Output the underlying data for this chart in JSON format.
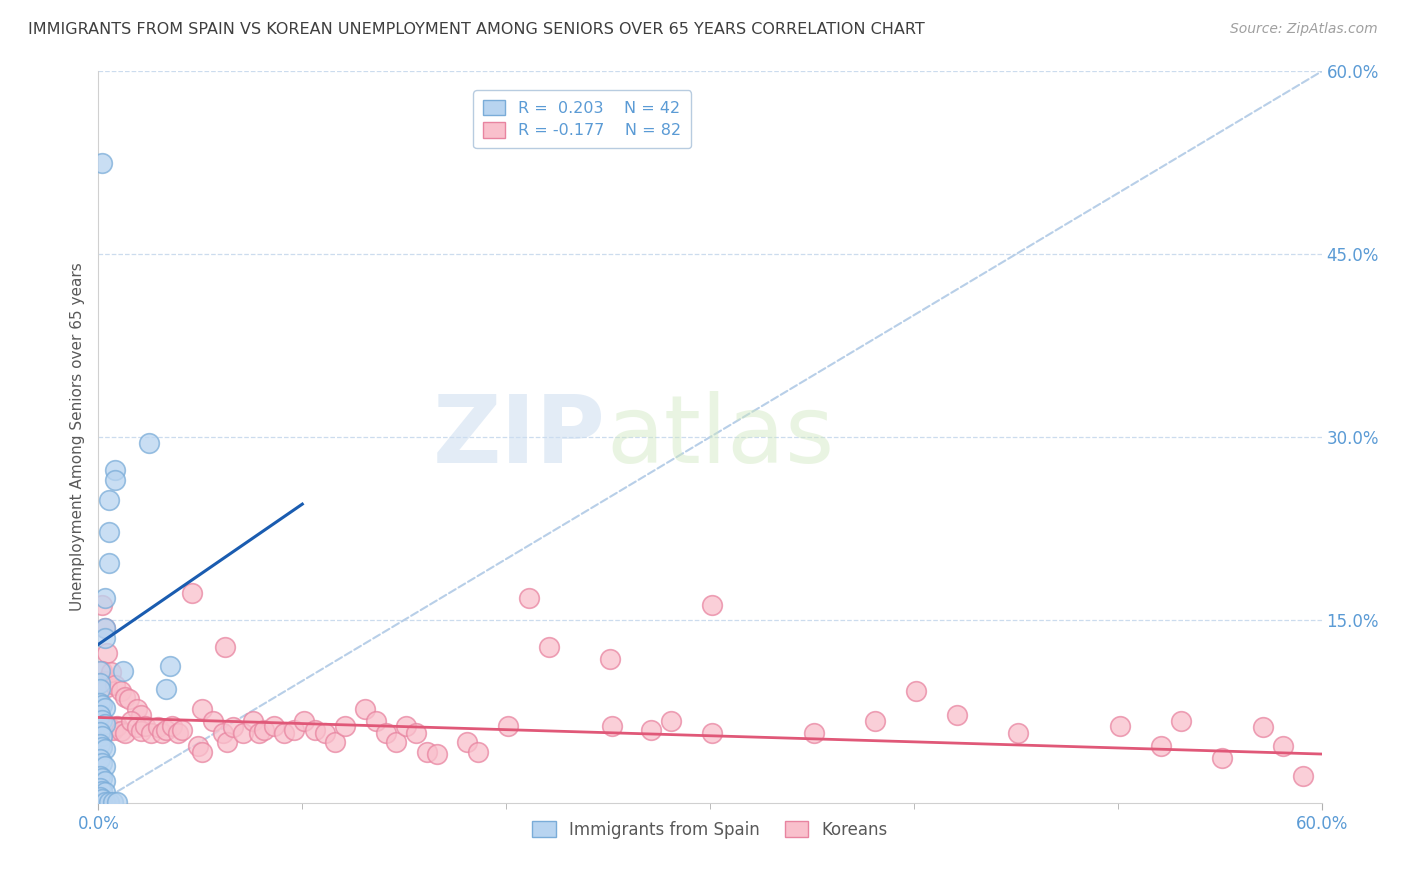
{
  "title": "IMMIGRANTS FROM SPAIN VS KOREAN UNEMPLOYMENT AMONG SENIORS OVER 65 YEARS CORRELATION CHART",
  "source": "Source: ZipAtlas.com",
  "ylabel": "Unemployment Among Seniors over 65 years",
  "right_axis_labels": [
    "60.0%",
    "45.0%",
    "30.0%",
    "15.0%"
  ],
  "xlim": [
    0,
    0.6
  ],
  "ylim": [
    0,
    0.6
  ],
  "legend_label1": "Immigrants from Spain",
  "legend_label2": "Koreans",
  "diagonal_line_color": "#b8cfe8",
  "blue_trend_x": [
    0.0,
    0.1
  ],
  "blue_trend_y": [
    0.13,
    0.245
  ],
  "blue_trend_color": "#1a5cb0",
  "pink_trend_x": [
    0.0,
    0.6
  ],
  "pink_trend_y": [
    0.07,
    0.04
  ],
  "pink_trend_color": "#e05878",
  "blue_points": [
    [
      0.002,
      0.525
    ],
    [
      0.008,
      0.273
    ],
    [
      0.008,
      0.265
    ],
    [
      0.005,
      0.248
    ],
    [
      0.005,
      0.222
    ],
    [
      0.005,
      0.197
    ],
    [
      0.003,
      0.168
    ],
    [
      0.003,
      0.143
    ],
    [
      0.003,
      0.135
    ],
    [
      0.001,
      0.108
    ],
    [
      0.001,
      0.098
    ],
    [
      0.001,
      0.093
    ],
    [
      0.025,
      0.295
    ],
    [
      0.035,
      0.112
    ],
    [
      0.033,
      0.093
    ],
    [
      0.012,
      0.108
    ],
    [
      0.001,
      0.082
    ],
    [
      0.002,
      0.08
    ],
    [
      0.003,
      0.078
    ],
    [
      0.001,
      0.072
    ],
    [
      0.002,
      0.068
    ],
    [
      0.003,
      0.065
    ],
    [
      0.001,
      0.058
    ],
    [
      0.002,
      0.055
    ],
    [
      0.001,
      0.048
    ],
    [
      0.002,
      0.046
    ],
    [
      0.003,
      0.044
    ],
    [
      0.001,
      0.036
    ],
    [
      0.002,
      0.033
    ],
    [
      0.003,
      0.03
    ],
    [
      0.001,
      0.022
    ],
    [
      0.002,
      0.02
    ],
    [
      0.003,
      0.018
    ],
    [
      0.001,
      0.012
    ],
    [
      0.002,
      0.01
    ],
    [
      0.003,
      0.009
    ],
    [
      0.001,
      0.005
    ],
    [
      0.002,
      0.003
    ],
    [
      0.003,
      0.001
    ],
    [
      0.005,
      0.001
    ],
    [
      0.007,
      0.001
    ],
    [
      0.009,
      0.001
    ]
  ],
  "pink_points": [
    [
      0.002,
      0.162
    ],
    [
      0.003,
      0.143
    ],
    [
      0.004,
      0.123
    ],
    [
      0.002,
      0.108
    ],
    [
      0.003,
      0.1
    ],
    [
      0.004,
      0.095
    ],
    [
      0.006,
      0.107
    ],
    [
      0.008,
      0.097
    ],
    [
      0.011,
      0.092
    ],
    [
      0.013,
      0.087
    ],
    [
      0.015,
      0.085
    ],
    [
      0.019,
      0.077
    ],
    [
      0.021,
      0.072
    ],
    [
      0.001,
      0.07
    ],
    [
      0.002,
      0.067
    ],
    [
      0.003,
      0.063
    ],
    [
      0.005,
      0.062
    ],
    [
      0.007,
      0.06
    ],
    [
      0.009,
      0.063
    ],
    [
      0.011,
      0.059
    ],
    [
      0.013,
      0.057
    ],
    [
      0.016,
      0.067
    ],
    [
      0.019,
      0.062
    ],
    [
      0.021,
      0.059
    ],
    [
      0.023,
      0.063
    ],
    [
      0.026,
      0.057
    ],
    [
      0.029,
      0.062
    ],
    [
      0.031,
      0.057
    ],
    [
      0.033,
      0.06
    ],
    [
      0.036,
      0.063
    ],
    [
      0.039,
      0.057
    ],
    [
      0.041,
      0.06
    ],
    [
      0.046,
      0.172
    ],
    [
      0.062,
      0.128
    ],
    [
      0.051,
      0.077
    ],
    [
      0.056,
      0.067
    ],
    [
      0.049,
      0.047
    ],
    [
      0.051,
      0.042
    ],
    [
      0.061,
      0.057
    ],
    [
      0.063,
      0.05
    ],
    [
      0.066,
      0.062
    ],
    [
      0.071,
      0.057
    ],
    [
      0.076,
      0.067
    ],
    [
      0.079,
      0.057
    ],
    [
      0.081,
      0.06
    ],
    [
      0.086,
      0.063
    ],
    [
      0.091,
      0.057
    ],
    [
      0.096,
      0.06
    ],
    [
      0.101,
      0.067
    ],
    [
      0.106,
      0.06
    ],
    [
      0.111,
      0.057
    ],
    [
      0.116,
      0.05
    ],
    [
      0.121,
      0.063
    ],
    [
      0.131,
      0.077
    ],
    [
      0.136,
      0.067
    ],
    [
      0.141,
      0.057
    ],
    [
      0.146,
      0.05
    ],
    [
      0.151,
      0.063
    ],
    [
      0.156,
      0.057
    ],
    [
      0.161,
      0.042
    ],
    [
      0.166,
      0.04
    ],
    [
      0.181,
      0.05
    ],
    [
      0.186,
      0.042
    ],
    [
      0.201,
      0.063
    ],
    [
      0.211,
      0.168
    ],
    [
      0.301,
      0.162
    ],
    [
      0.221,
      0.128
    ],
    [
      0.251,
      0.118
    ],
    [
      0.252,
      0.063
    ],
    [
      0.271,
      0.06
    ],
    [
      0.281,
      0.067
    ],
    [
      0.301,
      0.057
    ],
    [
      0.351,
      0.057
    ],
    [
      0.381,
      0.067
    ],
    [
      0.401,
      0.092
    ],
    [
      0.421,
      0.072
    ],
    [
      0.451,
      0.057
    ],
    [
      0.501,
      0.063
    ],
    [
      0.521,
      0.047
    ],
    [
      0.551,
      0.037
    ],
    [
      0.581,
      0.047
    ],
    [
      0.591,
      0.022
    ],
    [
      0.571,
      0.062
    ],
    [
      0.531,
      0.067
    ]
  ],
  "watermark_zip": "ZIP",
  "watermark_atlas": "atlas",
  "bg_color": "#ffffff",
  "grid_color": "#ccdcee",
  "tick_label_color": "#5b9bd5",
  "title_color": "#3f3f3f",
  "axis_label_color": "#595959",
  "source_color": "#a0a0a0"
}
